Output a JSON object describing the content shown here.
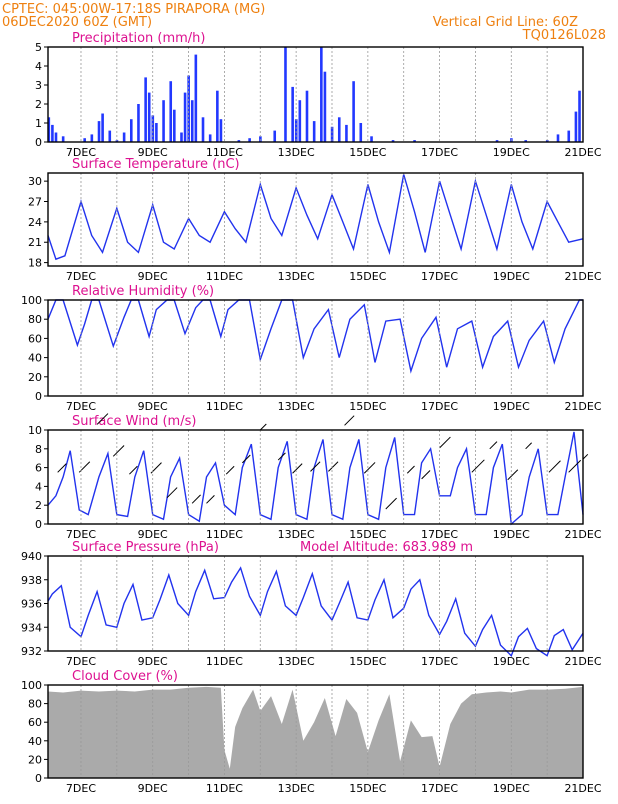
{
  "header": {
    "line1": "CPTEC:    045:00W-17:18S    PIRAPORA (MG)",
    "line2": "06DEC2020  60Z  (GMT)",
    "grid_note": "Vertical Grid Line: 60Z",
    "code": "TQ0126L028"
  },
  "colors": {
    "header_orange": "#ee8010",
    "title_magenta": "#dd1190",
    "line_blue": "#2233ee",
    "bar_blue": "#2238ff",
    "cloud_gray": "#aaaaaa",
    "arrow": "#000000"
  },
  "chart_data": [
    {
      "type": "bar",
      "title": "Precipitation  (mm/h)",
      "unit": "mm/h",
      "ylim": [
        0,
        5
      ],
      "yticks": [
        0,
        1,
        2,
        3,
        4,
        5
      ],
      "xticks": [
        "7DEC",
        "9DEC",
        "11DEC",
        "13DEC",
        "15DEC",
        "17DEC",
        "19DEC",
        "21DEC"
      ],
      "x_start_day": 6.08,
      "x_end_day": 21.0,
      "grid": "vertical dashed at 00Z each day",
      "series": [
        {
          "day": [
            6.1,
            6.2,
            6.3,
            6.5,
            7.1,
            7.3,
            7.5,
            7.6,
            7.8,
            8.0,
            8.2,
            8.4,
            8.6,
            8.8,
            8.9,
            9.0,
            9.1,
            9.3,
            9.5,
            9.6,
            9.8,
            9.9,
            10.0,
            10.1,
            10.2,
            10.4,
            10.6,
            10.8,
            10.9,
            11.4,
            11.7,
            12.0,
            12.4,
            12.7,
            12.9,
            13.0,
            13.1,
            13.3,
            13.5,
            13.7,
            13.8,
            14.0,
            14.2,
            14.4,
            14.6,
            14.8,
            15.1,
            15.7,
            16.3,
            18.6,
            19.0,
            19.4,
            20.0,
            20.3,
            20.6,
            20.8,
            20.9
          ],
          "value": [
            1.3,
            0.9,
            0.5,
            0.3,
            0.2,
            0.4,
            1.1,
            1.5,
            0.6,
            0.1,
            0.5,
            1.2,
            2.0,
            3.4,
            2.6,
            1.4,
            1.0,
            2.2,
            3.2,
            1.7,
            0.5,
            2.6,
            3.5,
            2.2,
            4.6,
            1.3,
            0.4,
            2.7,
            1.2,
            0.1,
            0.2,
            0.3,
            0.6,
            5.0,
            2.9,
            1.2,
            2.2,
            2.7,
            1.1,
            5.0,
            3.7,
            0.8,
            1.3,
            0.9,
            3.2,
            1.0,
            0.3,
            0.1,
            0.1,
            0.1,
            0.2,
            0.1,
            0.1,
            0.4,
            0.6,
            1.6,
            2.7
          ]
        }
      ]
    },
    {
      "type": "line",
      "title": "Surface Temperature  (nC)",
      "unit": "nC",
      "ylim": [
        17.5,
        31.2
      ],
      "yticks": [
        18,
        21,
        24,
        27,
        30
      ],
      "xticks": [
        "7DEC",
        "9DEC",
        "11DEC",
        "13DEC",
        "15DEC",
        "17DEC",
        "19DEC",
        "21DEC"
      ],
      "series": [
        {
          "day": [
            6.08,
            6.3,
            6.55,
            7.0,
            7.3,
            7.6,
            8.0,
            8.3,
            8.6,
            9.0,
            9.3,
            9.6,
            10.0,
            10.3,
            10.6,
            11.0,
            11.3,
            11.6,
            12.0,
            12.3,
            12.6,
            13.0,
            13.3,
            13.6,
            14.0,
            14.3,
            14.6,
            15.0,
            15.3,
            15.6,
            16.0,
            16.3,
            16.6,
            17.0,
            17.3,
            17.6,
            18.0,
            18.3,
            18.6,
            19.0,
            19.3,
            19.6,
            20.0,
            20.3,
            20.6,
            21.0
          ],
          "value": [
            22,
            18.5,
            19,
            27,
            22,
            19.5,
            26,
            21,
            19.5,
            26.5,
            21,
            20,
            24.5,
            22,
            21,
            25.5,
            23,
            21,
            29.5,
            24.5,
            22,
            29,
            25,
            21.5,
            28,
            24,
            20,
            29.5,
            24,
            19.5,
            31,
            25.5,
            19.5,
            30,
            25,
            20,
            30,
            25,
            20,
            29.5,
            24,
            20,
            27,
            24,
            21,
            21.5
          ]
        }
      ]
    },
    {
      "type": "line",
      "title": "Relative Humidity  (%)",
      "unit": "%",
      "ylim": [
        0,
        100
      ],
      "yticks": [
        0,
        20,
        40,
        60,
        80,
        100
      ],
      "xticks": [
        "7DEC",
        "9DEC",
        "11DEC",
        "13DEC",
        "15DEC",
        "17DEC",
        "19DEC",
        "21DEC"
      ],
      "series": [
        {
          "day": [
            6.08,
            6.3,
            6.5,
            6.9,
            7.1,
            7.3,
            7.5,
            7.9,
            8.2,
            8.4,
            8.6,
            8.9,
            9.1,
            9.4,
            9.6,
            9.9,
            10.2,
            10.4,
            10.6,
            10.9,
            11.1,
            11.4,
            11.7,
            12.0,
            12.3,
            12.6,
            12.9,
            13.2,
            13.5,
            13.9,
            14.2,
            14.5,
            14.9,
            15.2,
            15.5,
            15.9,
            16.2,
            16.5,
            16.9,
            17.2,
            17.5,
            17.9,
            18.2,
            18.5,
            18.9,
            19.2,
            19.5,
            19.9,
            20.2,
            20.5,
            20.9,
            21.0
          ],
          "value": [
            80,
            100,
            100,
            53,
            75,
            100,
            100,
            52,
            82,
            100,
            100,
            62,
            90,
            100,
            100,
            65,
            92,
            100,
            100,
            62,
            90,
            100,
            100,
            38,
            70,
            100,
            100,
            40,
            70,
            90,
            40,
            80,
            95,
            35,
            78,
            80,
            26,
            60,
            82,
            30,
            70,
            78,
            30,
            62,
            78,
            30,
            58,
            78,
            35,
            70,
            100,
            100
          ]
        }
      ]
    },
    {
      "type": "line",
      "title": "Surface Wind  (m/s)",
      "unit": "m/s",
      "ylim": [
        0,
        10
      ],
      "yticks": [
        0,
        2,
        4,
        6,
        8,
        10
      ],
      "xticks": [
        "7DEC",
        "9DEC",
        "11DEC",
        "13DEC",
        "15DEC",
        "17DEC",
        "19DEC",
        "21DEC"
      ],
      "series": [
        {
          "day": [
            6.08,
            6.3,
            6.5,
            6.7,
            6.95,
            7.2,
            7.5,
            7.75,
            8.0,
            8.3,
            8.5,
            8.75,
            9.0,
            9.3,
            9.5,
            9.75,
            10.0,
            10.3,
            10.5,
            10.75,
            11.0,
            11.3,
            11.5,
            11.75,
            12.0,
            12.3,
            12.5,
            12.75,
            13.0,
            13.3,
            13.5,
            13.75,
            14.0,
            14.3,
            14.5,
            14.75,
            15.0,
            15.3,
            15.5,
            15.75,
            16.0,
            16.3,
            16.5,
            16.75,
            17.0,
            17.3,
            17.5,
            17.75,
            18.0,
            18.3,
            18.5,
            18.75,
            19.0,
            19.3,
            19.5,
            19.75,
            20.0,
            20.3,
            20.5,
            20.75,
            21.0
          ],
          "value": [
            2,
            3,
            5,
            7.8,
            1.5,
            1,
            5,
            7.5,
            1,
            0.8,
            5,
            7.8,
            1,
            0.5,
            5,
            7,
            1,
            0.3,
            5,
            6.5,
            2,
            1,
            6,
            8.5,
            1,
            0.5,
            6,
            8.8,
            1,
            0.5,
            6,
            9,
            1,
            0.5,
            6,
            9,
            1,
            0.5,
            6,
            9.2,
            1,
            1,
            6.5,
            8,
            3,
            3,
            6,
            8,
            1,
            1,
            6,
            8.5,
            0,
            1,
            5,
            8,
            1,
            1,
            5,
            9.8,
            1
          ]
        },
        {
          "name": "wind-vectors",
          "arrows": [
            [
              6.35,
              5.5,
              3.6
            ],
            [
              6.95,
              5.5,
              4.4
            ],
            [
              7.45,
              10.6,
              4.5
            ],
            [
              7.9,
              7.2,
              4.5
            ],
            [
              8.35,
              5.3,
              3.3
            ],
            [
              8.95,
              5.4,
              4.4
            ],
            [
              9.4,
              2.8,
              4.2
            ],
            [
              10.1,
              2.2,
              3.5
            ],
            [
              10.5,
              2.2,
              3.3
            ],
            [
              11.05,
              5.3,
              3.3
            ],
            [
              11.5,
              6.5,
              3.3
            ],
            [
              12.0,
              10.0,
              2.5
            ],
            [
              12.5,
              6.8,
              3.0
            ],
            [
              12.9,
              5.4,
              4.0
            ],
            [
              13.4,
              5.6,
              4.0
            ],
            [
              13.9,
              5.6,
              4.0
            ],
            [
              14.35,
              10.5,
              4.0
            ],
            [
              14.9,
              5.4,
              4.5
            ],
            [
              15.5,
              1.6,
              4.5
            ],
            [
              16.1,
              5.4,
              3.0
            ],
            [
              16.5,
              4.8,
              3.5
            ],
            [
              17.0,
              8.1,
              4.5
            ],
            [
              17.9,
              5.5,
              5.2
            ],
            [
              18.4,
              8.0,
              3.0
            ],
            [
              18.9,
              4.7,
              4.2
            ],
            [
              19.4,
              8.0,
              2.5
            ],
            [
              20.05,
              5.5,
              4.8
            ],
            [
              20.6,
              5.5,
              5.0
            ],
            [
              21.0,
              6.9,
              2.0
            ]
          ]
        }
      ]
    },
    {
      "type": "line",
      "title": "Surface Pressure  (hPa)",
      "subtitle": "Model Altitude:  683.989  m",
      "unit": "hPa",
      "ylim": [
        932,
        940
      ],
      "yticks": [
        932,
        934,
        936,
        938,
        940
      ],
      "xticks": [
        "7DEC",
        "9DEC",
        "11DEC",
        "13DEC",
        "15DEC",
        "17DEC",
        "19DEC",
        "21DEC"
      ],
      "series": [
        {
          "day": [
            6.08,
            6.2,
            6.45,
            6.7,
            7.0,
            7.2,
            7.45,
            7.7,
            8.0,
            8.2,
            8.45,
            8.7,
            9.0,
            9.2,
            9.45,
            9.7,
            10.0,
            10.2,
            10.45,
            10.7,
            11.0,
            11.2,
            11.45,
            11.7,
            12.0,
            12.2,
            12.45,
            12.7,
            13.0,
            13.2,
            13.45,
            13.7,
            14.0,
            14.2,
            14.45,
            14.7,
            15.0,
            15.2,
            15.45,
            15.7,
            16.0,
            16.2,
            16.45,
            16.7,
            17.0,
            17.2,
            17.45,
            17.7,
            18.0,
            18.2,
            18.45,
            18.7,
            19.0,
            19.2,
            19.45,
            19.7,
            20.0,
            20.2,
            20.45,
            20.7,
            21.0
          ],
          "value": [
            936.2,
            936.8,
            937.5,
            934.0,
            933.2,
            935.0,
            937.0,
            934.2,
            934.0,
            936.0,
            937.6,
            934.6,
            934.8,
            936.3,
            938.4,
            936.0,
            935.0,
            937.0,
            938.8,
            936.4,
            936.5,
            937.8,
            939.0,
            936.6,
            935.0,
            937.0,
            938.7,
            935.8,
            935.0,
            936.5,
            938.5,
            935.8,
            934.6,
            936.0,
            937.8,
            934.8,
            934.6,
            936.3,
            938.0,
            934.8,
            935.6,
            937.2,
            938.0,
            935.0,
            933.4,
            934.5,
            936.4,
            933.5,
            932.4,
            933.8,
            935.0,
            932.5,
            931.6,
            933.2,
            933.9,
            932.2,
            931.6,
            933.3,
            933.8,
            932.1,
            933.5
          ]
        }
      ]
    },
    {
      "type": "area",
      "title": "Cloud Cover  (%)",
      "unit": "%",
      "ylim": [
        0,
        100
      ],
      "yticks": [
        0,
        20,
        40,
        60,
        80,
        100
      ],
      "xticks": [
        "7DEC",
        "9DEC",
        "11DEC",
        "13DEC",
        "15DEC",
        "17DEC",
        "19DEC",
        "21DEC"
      ],
      "series": [
        {
          "day": [
            6.08,
            6.5,
            7.0,
            7.5,
            8.0,
            8.5,
            9.0,
            9.5,
            10.0,
            10.5,
            10.9,
            11.0,
            11.15,
            11.3,
            11.5,
            11.8,
            12.0,
            12.3,
            12.6,
            12.9,
            13.2,
            13.5,
            13.8,
            14.1,
            14.4,
            14.7,
            15.0,
            15.3,
            15.6,
            15.9,
            16.2,
            16.5,
            16.8,
            17.0,
            17.3,
            17.6,
            17.9,
            18.3,
            18.7,
            19.0,
            19.5,
            20.0,
            20.5,
            21.0
          ],
          "value": [
            93,
            92,
            94,
            93,
            94,
            93,
            95,
            95,
            97,
            98,
            97,
            30,
            10,
            55,
            75,
            95,
            72,
            88,
            58,
            95,
            40,
            60,
            86,
            45,
            85,
            70,
            28,
            62,
            90,
            18,
            62,
            44,
            45,
            12,
            58,
            80,
            90,
            92,
            93,
            92,
            95,
            95,
            96,
            98
          ]
        }
      ]
    }
  ]
}
